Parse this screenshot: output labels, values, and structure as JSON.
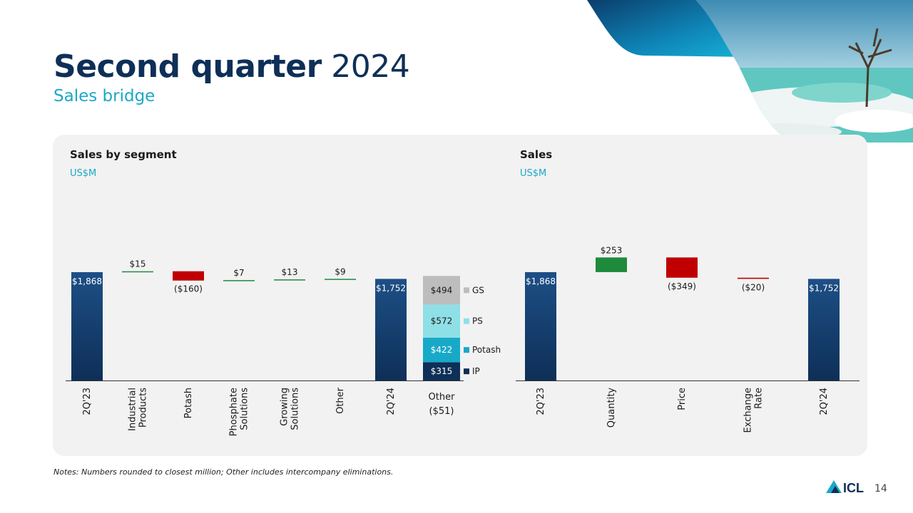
{
  "slide": {
    "title_bold": "Second quarter",
    "title_regular": "2024",
    "subtitle": "Sales bridge",
    "note": "Notes: Numbers rounded to closest million; Other includes intercompany eliminations.",
    "page_number": "14",
    "logo_text": "ICL"
  },
  "colors": {
    "navy": "#0e2f57",
    "navy_bar_top": "#1d4f86",
    "increase": "#1e8a3c",
    "decrease": "#c00000",
    "gs": "#bdbdbd",
    "ps": "#8fe0e6",
    "potash": "#18a9c9",
    "ip": "#0e2f57",
    "accent": "#1aa8c6"
  },
  "chart_data": [
    {
      "type": "bar",
      "subtype": "waterfall",
      "title": "Sales by segment",
      "unit": "US$M",
      "categories": [
        "2Q'23",
        "Industrial Products",
        "Potash",
        "Phosphate Solutions",
        "Growing Solutions",
        "Other",
        "2Q'24",
        "Other ($51)"
      ],
      "category_labels": [
        [
          "2Q'23"
        ],
        [
          "Industrial",
          "Products"
        ],
        [
          "Potash"
        ],
        [
          "Phosphate",
          "Solutions"
        ],
        [
          "Growing",
          "Solutions"
        ],
        [
          "Other"
        ],
        [
          "2Q'24"
        ],
        [
          "Other",
          "($51)"
        ]
      ],
      "steps": [
        {
          "kind": "total",
          "value": 1868,
          "label": "$1,868"
        },
        {
          "kind": "delta",
          "value": 15,
          "label": "$15"
        },
        {
          "kind": "delta",
          "value": -160,
          "label": "($160)"
        },
        {
          "kind": "delta",
          "value": 7,
          "label": "$7"
        },
        {
          "kind": "delta",
          "value": 13,
          "label": "$13"
        },
        {
          "kind": "delta",
          "value": 9,
          "label": "$9"
        },
        {
          "kind": "total",
          "value": 1752,
          "label": "$1,752"
        },
        {
          "kind": "stack",
          "segments": [
            {
              "name": "IP",
              "value": 315,
              "label": "$315"
            },
            {
              "name": "Potash",
              "value": 422,
              "label": "$422"
            },
            {
              "name": "PS",
              "value": 572,
              "label": "$572"
            },
            {
              "name": "GS",
              "value": 494,
              "label": "$494"
            }
          ]
        }
      ],
      "legend": [
        "GS",
        "PS",
        "Potash",
        "IP"
      ],
      "ylim": [
        0,
        2300
      ],
      "grid": false
    },
    {
      "type": "bar",
      "subtype": "waterfall",
      "title": "Sales",
      "unit": "US$M",
      "categories": [
        "2Q'23",
        "Quantity",
        "Price",
        "Exchange Rate",
        "2Q'24"
      ],
      "category_labels": [
        [
          "2Q'23"
        ],
        [
          "Quantity"
        ],
        [
          "Price"
        ],
        [
          "Exchange",
          "Rate"
        ],
        [
          "2Q'24"
        ]
      ],
      "steps": [
        {
          "kind": "total",
          "value": 1868,
          "label": "$1,868"
        },
        {
          "kind": "delta",
          "value": 253,
          "label": "$253"
        },
        {
          "kind": "delta",
          "value": -349,
          "label": "($349)"
        },
        {
          "kind": "delta",
          "value": -20,
          "label": "($20)"
        },
        {
          "kind": "total",
          "value": 1752,
          "label": "$1,752"
        }
      ],
      "ylim": [
        0,
        2300
      ],
      "grid": false
    }
  ]
}
